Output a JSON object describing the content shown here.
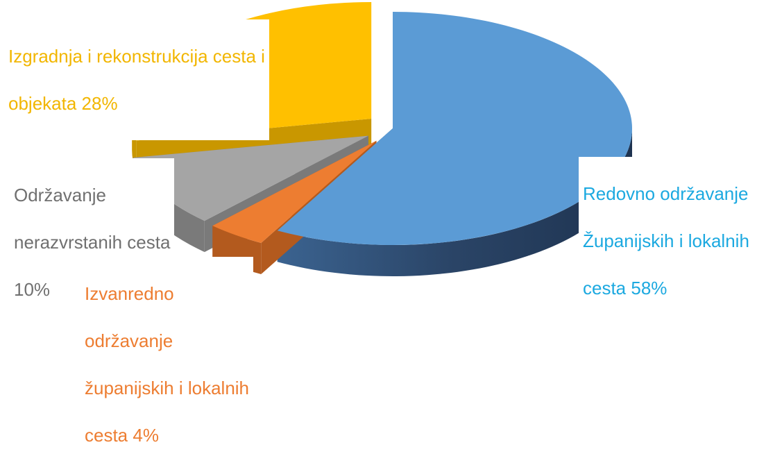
{
  "chart_data": {
    "type": "pie",
    "title": "",
    "style": "3d-exploded",
    "slices": [
      {
        "name": "Redovno održavanje Županijskih i lokalnih cesta",
        "value": 58,
        "color": "#5B9BD5",
        "side_color": "#2E4B6E",
        "label_lines": [
          "Redovno održavanje",
          "Županijskih i lokalnih",
          "cesta 58%"
        ],
        "label_color": "#1CA9E0"
      },
      {
        "name": "Izvanredno održavanje županijskih i lokalnih cesta",
        "value": 4,
        "color": "#ED7D31",
        "side_color": "#B35A1E",
        "label_lines": [
          "Izvanredno",
          "održavanje",
          "županijskih i lokalnih",
          "cesta 4%"
        ],
        "label_color": "#ED7D31"
      },
      {
        "name": "Održavanje nerazvrstanih cesta",
        "value": 10,
        "color": "#A5A5A5",
        "side_color": "#7A7A7A",
        "label_lines": [
          "Održavanje",
          "nerazvrstanih cesta",
          "10%"
        ],
        "label_color": "#707070"
      },
      {
        "name": "Izgradnja i rekonstrukcija cesta i objekata",
        "value": 28,
        "color": "#FFC000",
        "side_color": "#C99700",
        "label_lines": [
          "Izgradnja i rekonstrukcija cesta i",
          "objekata 28%"
        ],
        "label_color": "#F2B600"
      }
    ]
  }
}
